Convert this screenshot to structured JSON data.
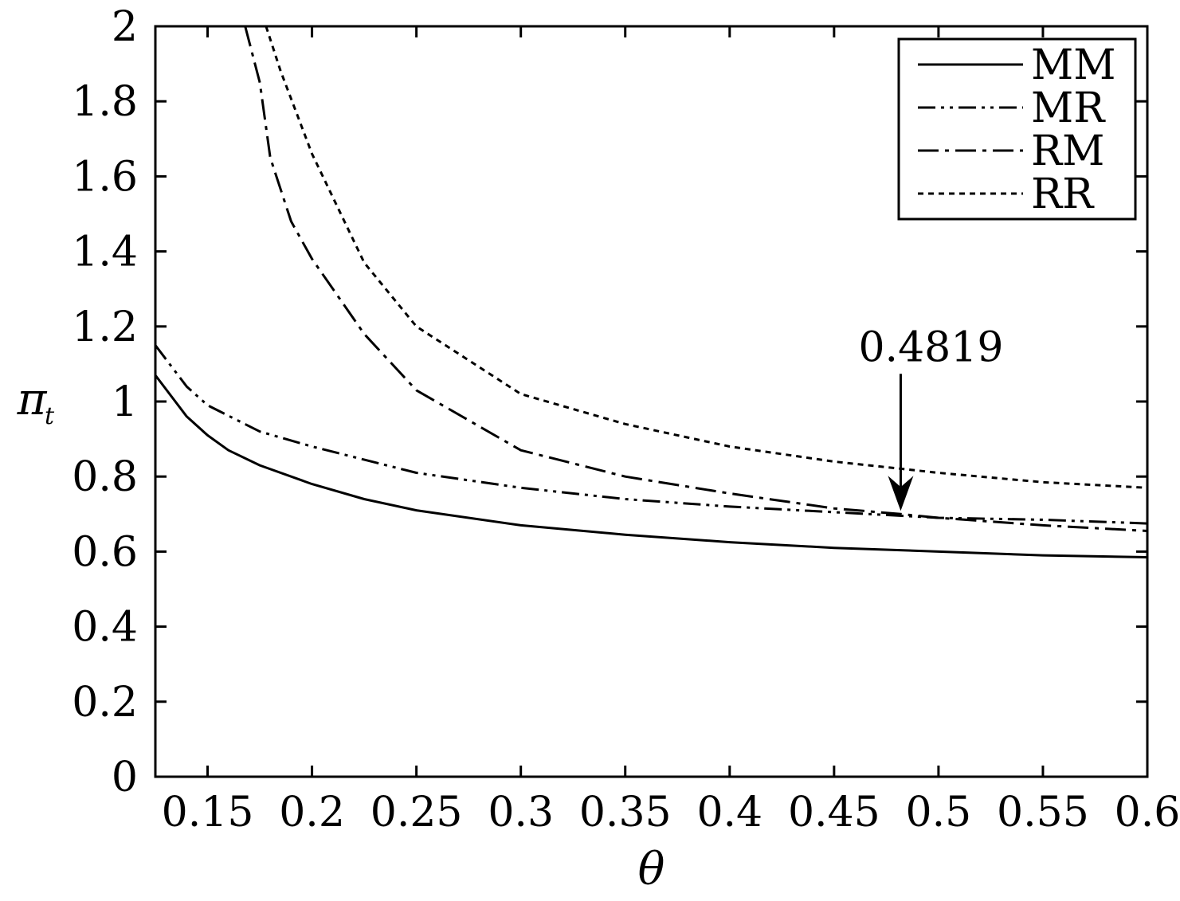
{
  "chart_data": {
    "type": "line",
    "title": "",
    "xlabel": "θ",
    "ylabel": "π",
    "ylabel_subscript": "t",
    "xlim": [
      0.125,
      0.6
    ],
    "ylim": [
      0,
      2
    ],
    "xticks": [
      0.15,
      0.2,
      0.25,
      0.3,
      0.35,
      0.4,
      0.45,
      0.5,
      0.55,
      0.6
    ],
    "xtick_labels": [
      "0.15",
      "0.2",
      "0.25",
      "0.3",
      "0.35",
      "0.4",
      "0.45",
      "0.5",
      "0.55",
      "0.6"
    ],
    "yticks": [
      0,
      0.2,
      0.4,
      0.6,
      0.8,
      1,
      1.2,
      1.4,
      1.6,
      1.8,
      2
    ],
    "ytick_labels": [
      "0",
      "0.2",
      "0.4",
      "0.6",
      "0.8",
      "1",
      "1.2",
      "1.4",
      "1.6",
      "1.8",
      "2"
    ],
    "grid": false,
    "legend_position": "top-right",
    "series": [
      {
        "name": "MM",
        "style": "solid",
        "x": [
          0.125,
          0.14,
          0.15,
          0.16,
          0.175,
          0.2,
          0.225,
          0.25,
          0.3,
          0.35,
          0.4,
          0.45,
          0.5,
          0.55,
          0.6
        ],
        "y": [
          1.07,
          0.96,
          0.91,
          0.87,
          0.83,
          0.78,
          0.74,
          0.71,
          0.67,
          0.645,
          0.625,
          0.61,
          0.6,
          0.59,
          0.585
        ]
      },
      {
        "name": "MR",
        "style": "dash-dot-dot",
        "x": [
          0.125,
          0.14,
          0.15,
          0.175,
          0.2,
          0.25,
          0.3,
          0.35,
          0.4,
          0.45,
          0.5,
          0.55,
          0.6
        ],
        "y": [
          1.15,
          1.04,
          0.99,
          0.92,
          0.88,
          0.81,
          0.77,
          0.74,
          0.72,
          0.705,
          0.69,
          0.685,
          0.675
        ]
      },
      {
        "name": "RM",
        "style": "dash-dot",
        "x": [
          0.168,
          0.175,
          0.18,
          0.19,
          0.2,
          0.225,
          0.25,
          0.3,
          0.35,
          0.4,
          0.45,
          0.4819,
          0.5,
          0.55,
          0.6
        ],
        "y": [
          2.0,
          1.85,
          1.65,
          1.48,
          1.38,
          1.18,
          1.03,
          0.87,
          0.8,
          0.755,
          0.715,
          0.7,
          0.69,
          0.67,
          0.655
        ]
      },
      {
        "name": "RR",
        "style": "dotted",
        "x": [
          0.178,
          0.185,
          0.2,
          0.225,
          0.25,
          0.3,
          0.35,
          0.4,
          0.45,
          0.5,
          0.55,
          0.6
        ],
        "y": [
          2.0,
          1.88,
          1.66,
          1.37,
          1.2,
          1.02,
          0.94,
          0.88,
          0.84,
          0.81,
          0.785,
          0.77
        ]
      }
    ],
    "annotations": [
      {
        "text": "0.4819",
        "x": 0.4819,
        "y": 0.7,
        "arrow": "down"
      }
    ]
  }
}
